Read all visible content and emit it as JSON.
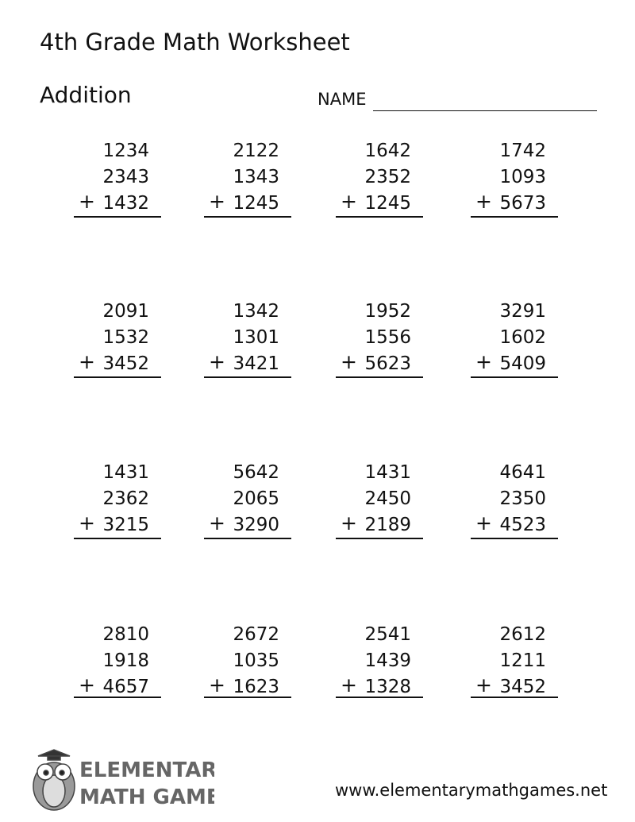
{
  "header": {
    "title": "4th Grade Math Worksheet",
    "subtitle": "Addition",
    "name_label": "NAME"
  },
  "operator": "+",
  "problems": [
    [
      [
        "1234",
        "2343",
        "1432"
      ],
      [
        "2122",
        "1343",
        "1245"
      ],
      [
        "1642",
        "2352",
        "1245"
      ],
      [
        "1742",
        "1093",
        "5673"
      ]
    ],
    [
      [
        "2091",
        "1532",
        "3452"
      ],
      [
        "1342",
        "1301",
        "3421"
      ],
      [
        "1952",
        "1556",
        "5623"
      ],
      [
        "3291",
        "1602",
        "5409"
      ]
    ],
    [
      [
        "1431",
        "2362",
        "3215"
      ],
      [
        "5642",
        "2065",
        "3290"
      ],
      [
        "1431",
        "2450",
        "2189"
      ],
      [
        "4641",
        "2350",
        "4523"
      ]
    ],
    [
      [
        "2810",
        "1918",
        "4657"
      ],
      [
        "2672",
        "1035",
        "1623"
      ],
      [
        "2541",
        "1439",
        "1328"
      ],
      [
        "2612",
        "1211",
        "3452"
      ]
    ]
  ],
  "footer": {
    "logo_line1": "ELEMENTARY",
    "logo_line2": "MATH GAMES",
    "url": "www.elementarymathgames.net"
  }
}
